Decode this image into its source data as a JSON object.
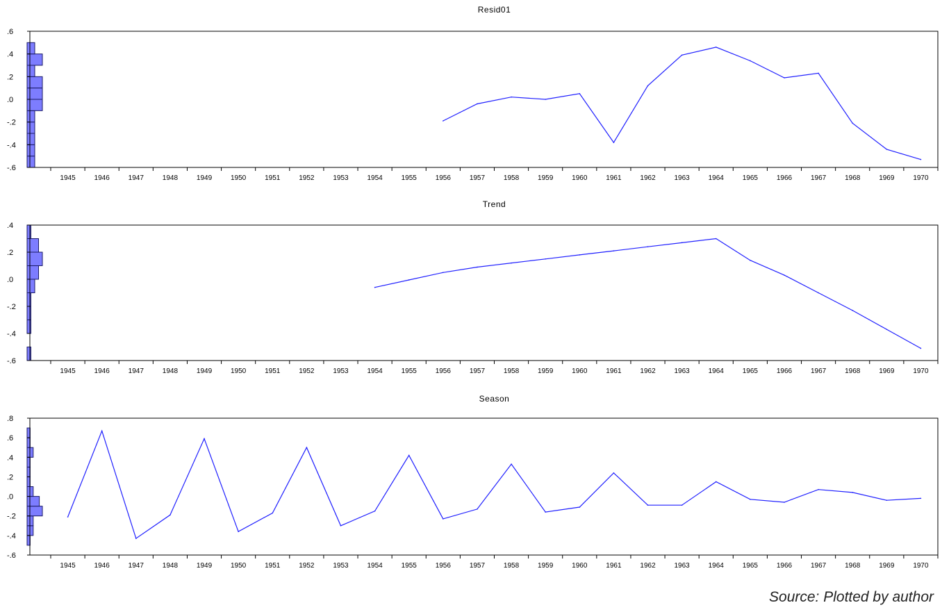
{
  "source_note": "Source: Plotted by author",
  "colors": {
    "line": "#1f1fff",
    "hist_fill": "#7d7dff",
    "hist_stroke": "#1a1a66",
    "axis": "#000000"
  },
  "chart_data": [
    {
      "type": "line",
      "title": "Resid01",
      "x": [
        "1945",
        "1946",
        "1947",
        "1948",
        "1949",
        "1950",
        "1951",
        "1952",
        "1953",
        "1954",
        "1955",
        "1956",
        "1957",
        "1958",
        "1959",
        "1960",
        "1961",
        "1962",
        "1963",
        "1964",
        "1965",
        "1966",
        "1967",
        "1968",
        "1969",
        "1970"
      ],
      "y": [
        null,
        null,
        null,
        null,
        null,
        null,
        null,
        null,
        null,
        null,
        null,
        -0.19,
        -0.04,
        0.02,
        0.0,
        0.05,
        -0.38,
        0.12,
        0.39,
        0.46,
        0.34,
        0.19,
        0.23,
        -0.21,
        -0.44,
        -0.53
      ],
      "ylim": [
        -0.6,
        0.6
      ],
      "yticks": [
        ".6",
        ".4",
        ".2",
        ".0",
        "-.2",
        "-.4",
        "-.6"
      ],
      "ytick_values": [
        0.6,
        0.4,
        0.2,
        0.0,
        -0.2,
        -0.4,
        -0.6
      ],
      "histogram": [
        {
          "lo": -0.6,
          "hi": -0.5,
          "count": 2
        },
        {
          "lo": -0.5,
          "hi": -0.4,
          "count": 2
        },
        {
          "lo": -0.4,
          "hi": -0.3,
          "count": 2
        },
        {
          "lo": -0.3,
          "hi": -0.2,
          "count": 2
        },
        {
          "lo": -0.2,
          "hi": -0.1,
          "count": 2
        },
        {
          "lo": -0.1,
          "hi": 0.0,
          "count": 4
        },
        {
          "lo": 0.0,
          "hi": 0.1,
          "count": 4
        },
        {
          "lo": 0.1,
          "hi": 0.2,
          "count": 4
        },
        {
          "lo": 0.2,
          "hi": 0.3,
          "count": 2
        },
        {
          "lo": 0.3,
          "hi": 0.4,
          "count": 4
        },
        {
          "lo": 0.4,
          "hi": 0.5,
          "count": 2
        }
      ]
    },
    {
      "type": "line",
      "title": "Trend",
      "x": [
        "1945",
        "1946",
        "1947",
        "1948",
        "1949",
        "1950",
        "1951",
        "1952",
        "1953",
        "1954",
        "1955",
        "1956",
        "1957",
        "1958",
        "1959",
        "1960",
        "1961",
        "1962",
        "1963",
        "1964",
        "1965",
        "1966",
        "1967",
        "1968",
        "1969",
        "1970"
      ],
      "y": [
        null,
        null,
        null,
        null,
        null,
        null,
        null,
        null,
        null,
        -0.06,
        -0.005,
        0.05,
        0.09,
        0.12,
        0.15,
        0.18,
        0.21,
        0.24,
        0.27,
        0.3,
        0.14,
        0.03,
        -0.1,
        -0.23,
        -0.37,
        -0.51
      ],
      "ylim": [
        -0.6,
        0.4
      ],
      "yticks": [
        ".4",
        ".2",
        ".0",
        "-.2",
        "-.4",
        "-.6"
      ],
      "ytick_values": [
        0.4,
        0.2,
        0.0,
        -0.2,
        -0.4,
        -0.6
      ],
      "histogram": [
        {
          "lo": -0.6,
          "hi": -0.5,
          "count": 1
        },
        {
          "lo": -0.5,
          "hi": -0.4,
          "count": 0
        },
        {
          "lo": -0.4,
          "hi": -0.3,
          "count": 1
        },
        {
          "lo": -0.3,
          "hi": -0.2,
          "count": 1
        },
        {
          "lo": -0.2,
          "hi": -0.1,
          "count": 1
        },
        {
          "lo": -0.1,
          "hi": 0.0,
          "count": 2
        },
        {
          "lo": 0.0,
          "hi": 0.1,
          "count": 3
        },
        {
          "lo": 0.1,
          "hi": 0.2,
          "count": 4
        },
        {
          "lo": 0.2,
          "hi": 0.3,
          "count": 3
        },
        {
          "lo": 0.3,
          "hi": 0.4,
          "count": 1
        }
      ]
    },
    {
      "type": "line",
      "title": "Season",
      "x": [
        "1945",
        "1946",
        "1947",
        "1948",
        "1949",
        "1950",
        "1951",
        "1952",
        "1953",
        "1954",
        "1955",
        "1956",
        "1957",
        "1958",
        "1959",
        "1960",
        "1961",
        "1962",
        "1963",
        "1964",
        "1965",
        "1966",
        "1967",
        "1968",
        "1969",
        "1970"
      ],
      "y": [
        -0.21,
        0.67,
        -0.43,
        -0.19,
        0.59,
        -0.36,
        -0.17,
        0.5,
        -0.3,
        -0.15,
        0.42,
        -0.23,
        -0.13,
        0.33,
        -0.16,
        -0.11,
        0.24,
        -0.09,
        -0.09,
        0.15,
        -0.03,
        -0.06,
        0.07,
        0.04,
        -0.04,
        -0.02
      ],
      "ylim": [
        -0.6,
        0.8
      ],
      "yticks": [
        ".8",
        ".6",
        ".4",
        ".2",
        ".0",
        "-.2",
        "-.4",
        "-.6"
      ],
      "ytick_values": [
        0.8,
        0.6,
        0.4,
        0.2,
        0.0,
        -0.2,
        -0.4,
        -0.6
      ],
      "histogram": [
        {
          "lo": -0.5,
          "hi": -0.4,
          "count": 1
        },
        {
          "lo": -0.4,
          "hi": -0.3,
          "count": 2
        },
        {
          "lo": -0.3,
          "hi": -0.2,
          "count": 2
        },
        {
          "lo": -0.2,
          "hi": -0.1,
          "count": 5
        },
        {
          "lo": -0.1,
          "hi": 0.0,
          "count": 4
        },
        {
          "lo": 0.0,
          "hi": 0.1,
          "count": 2
        },
        {
          "lo": 0.1,
          "hi": 0.2,
          "count": 1
        },
        {
          "lo": 0.2,
          "hi": 0.3,
          "count": 1
        },
        {
          "lo": 0.3,
          "hi": 0.4,
          "count": 1
        },
        {
          "lo": 0.4,
          "hi": 0.5,
          "count": 2
        },
        {
          "lo": 0.5,
          "hi": 0.6,
          "count": 1
        },
        {
          "lo": 0.6,
          "hi": 0.7,
          "count": 1
        }
      ]
    }
  ]
}
